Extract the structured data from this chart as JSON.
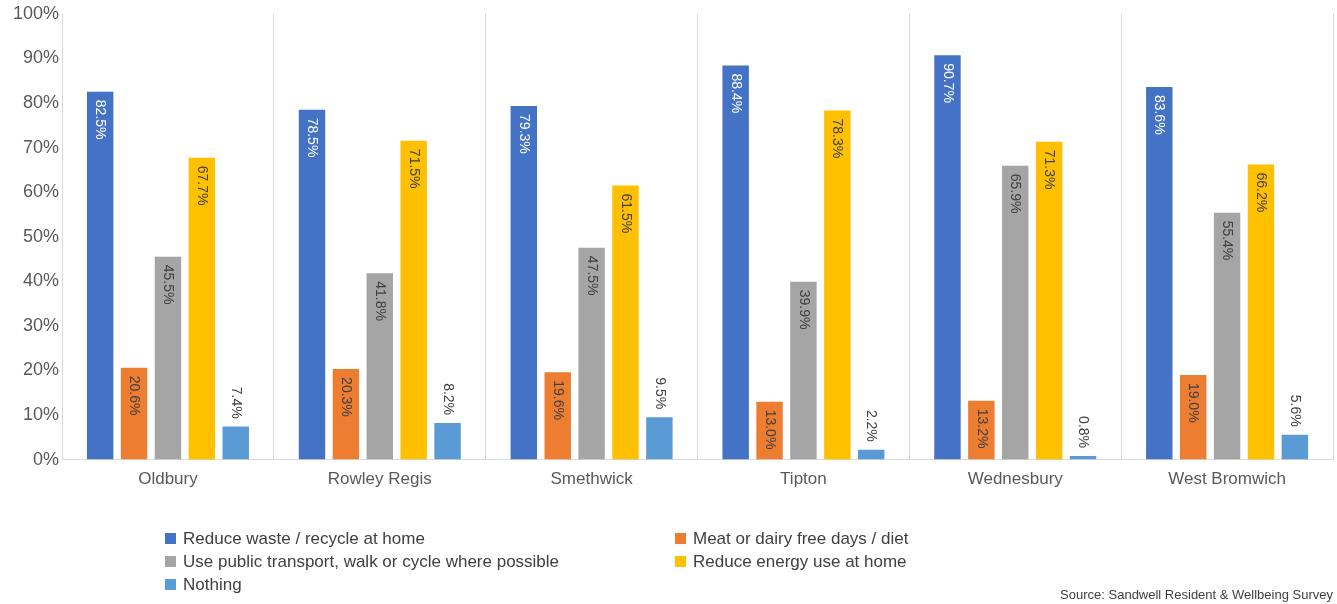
{
  "chart_data": {
    "type": "bar",
    "categories": [
      "Oldbury",
      "Rowley Regis",
      "Smethwick",
      "Tipton",
      "Wednesbury",
      "West Bromwich"
    ],
    "series": [
      {
        "name": "Reduce waste / recycle at home",
        "color": "#4472c4",
        "values": [
          82.5,
          78.5,
          79.3,
          88.4,
          90.7,
          83.6
        ],
        "value_labels": [
          "82.5%",
          "78.5%",
          "79.3%",
          "88.4%",
          "90.7%",
          "83.6%"
        ]
      },
      {
        "name": "Meat or dairy free days / diet",
        "color": "#ed7d31",
        "values": [
          20.6,
          20.3,
          19.6,
          13.0,
          13.2,
          19.0
        ],
        "value_labels": [
          "20.6%",
          "20.3%",
          "19.6%",
          "13.0%",
          "13.2%",
          "19.0%"
        ]
      },
      {
        "name": "Use public transport, walk or cycle where possible",
        "color": "#a5a5a5",
        "values": [
          45.5,
          41.8,
          47.5,
          39.9,
          65.9,
          55.4
        ],
        "value_labels": [
          "45.5%",
          "41.8%",
          "47.5%",
          "39.9%",
          "65.9%",
          "55.4%"
        ]
      },
      {
        "name": "Reduce energy use at home",
        "color": "#ffc000",
        "values": [
          67.7,
          71.5,
          61.5,
          78.3,
          71.3,
          66.2
        ],
        "value_labels": [
          "67.7%",
          "71.5%",
          "61.5%",
          "78.3%",
          "71.3%",
          "66.2%"
        ]
      },
      {
        "name": "Nothing",
        "color": "#5b9bd5",
        "values": [
          7.4,
          8.2,
          9.5,
          2.2,
          0.8,
          5.6
        ],
        "value_labels": [
          "7.4%",
          "8.2%",
          "9.5%",
          "2.2%",
          "0.8%",
          "5.6%"
        ]
      }
    ],
    "ylim": [
      0,
      100
    ],
    "yticks": [
      {
        "value": 0,
        "label": "0%"
      },
      {
        "value": 10,
        "label": "10%"
      },
      {
        "value": 20,
        "label": "20%"
      },
      {
        "value": 30,
        "label": "30%"
      },
      {
        "value": 40,
        "label": "40%"
      },
      {
        "value": 50,
        "label": "50%"
      },
      {
        "value": 60,
        "label": "60%"
      },
      {
        "value": 70,
        "label": "70%"
      },
      {
        "value": 80,
        "label": "80%"
      },
      {
        "value": 90,
        "label": "90%"
      },
      {
        "value": 100,
        "label": "100%"
      }
    ],
    "grid": "x",
    "legend": "bottom",
    "annotations": [
      "Source: Sandwell Resident & Wellbeing Survey"
    ]
  }
}
